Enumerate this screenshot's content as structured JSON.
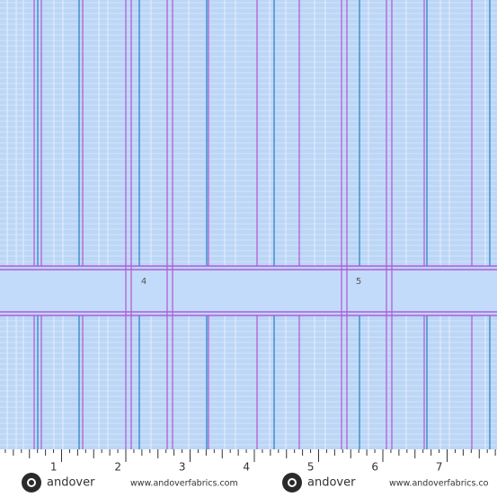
{
  "fabric": {
    "band_labels": [
      "4",
      "5"
    ]
  },
  "ruler": {
    "numbers": [
      "1",
      "2",
      "3",
      "4",
      "5",
      "6",
      "7"
    ]
  },
  "footer": {
    "logos": [
      {
        "brand": "andover",
        "url": "www.andoverfabrics.com"
      },
      {
        "brand": "andover",
        "url": "www.andoverfabrics.co"
      }
    ]
  }
}
